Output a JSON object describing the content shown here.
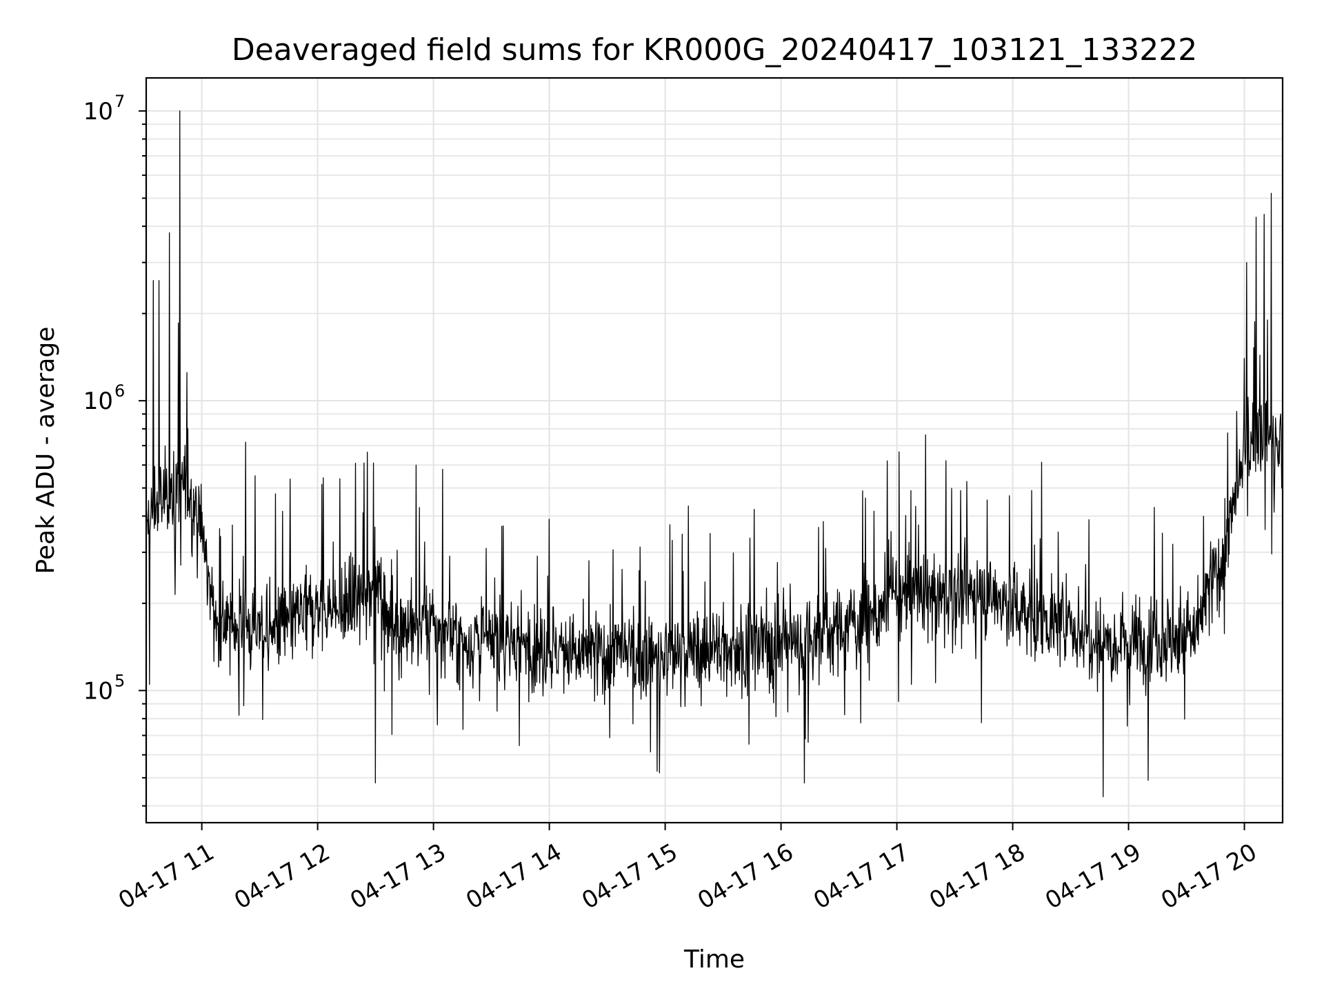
{
  "chart_data": {
    "type": "line",
    "title": "Deaveraged field sums for KR000G_20240417_103121_133222",
    "xlabel": "Time",
    "ylabel": "Peak ADU - average",
    "yscale": "log",
    "ylim": [
      35000,
      13000000
    ],
    "xlim": [
      "2024-04-17 10:31",
      "2024-04-17 20:20"
    ],
    "grid": true,
    "x_ticks": [
      {
        "label": "04-17 11",
        "hour": 11
      },
      {
        "label": "04-17 12",
        "hour": 12
      },
      {
        "label": "04-17 13",
        "hour": 13
      },
      {
        "label": "04-17 14",
        "hour": 14
      },
      {
        "label": "04-17 15",
        "hour": 15
      },
      {
        "label": "04-17 16",
        "hour": 16
      },
      {
        "label": "04-17 17",
        "hour": 17
      },
      {
        "label": "04-17 18",
        "hour": 18
      },
      {
        "label": "04-17 19",
        "hour": 19
      },
      {
        "label": "04-17 20",
        "hour": 20
      }
    ],
    "y_ticks": [
      {
        "base": "10",
        "exp": "5",
        "value": 100000
      },
      {
        "base": "10",
        "exp": "6",
        "value": 1000000
      },
      {
        "base": "10",
        "exp": "7",
        "value": 10000000
      }
    ],
    "series": [
      {
        "color": "#000000",
        "x_hours": [
          10.52,
          10.6,
          10.7,
          10.8,
          10.9,
          11.0,
          11.1,
          11.2,
          11.4,
          11.6,
          11.8,
          12.0,
          12.2,
          12.4,
          12.5,
          12.6,
          12.8,
          13.0,
          13.2,
          13.4,
          13.6,
          13.8,
          14.0,
          14.2,
          14.4,
          14.6,
          14.8,
          15.0,
          15.2,
          15.4,
          15.6,
          15.8,
          16.0,
          16.2,
          16.4,
          16.6,
          16.8,
          17.0,
          17.2,
          17.4,
          17.6,
          17.8,
          18.0,
          18.2,
          18.4,
          18.6,
          18.8,
          19.0,
          19.2,
          19.4,
          19.6,
          19.7,
          19.8,
          19.9,
          20.0,
          20.1,
          20.2,
          20.3,
          20.35
        ],
        "values": [
          350000,
          430000,
          470000,
          500000,
          480000,
          360000,
          180000,
          170000,
          165000,
          160000,
          175000,
          195000,
          185000,
          210000,
          260000,
          180000,
          165000,
          165000,
          150000,
          145000,
          148000,
          145000,
          140000,
          130000,
          135000,
          135000,
          130000,
          130000,
          135000,
          140000,
          140000,
          145000,
          145000,
          150000,
          160000,
          170000,
          180000,
          210000,
          220000,
          210000,
          215000,
          215000,
          195000,
          180000,
          170000,
          160000,
          150000,
          150000,
          155000,
          150000,
          160000,
          230000,
          280000,
          400000,
          650000,
          800000,
          750000,
          700000,
          650000
        ],
        "spikes": [
          {
            "hour": 10.58,
            "value": 2600000
          },
          {
            "hour": 10.63,
            "value": 2600000
          },
          {
            "hour": 10.72,
            "value": 3800000
          },
          {
            "hour": 10.81,
            "value": 10000000
          },
          {
            "hour": 11.38,
            "value": 720000
          },
          {
            "hour": 12.4,
            "value": 610000
          },
          {
            "hour": 12.48,
            "value": 610000
          },
          {
            "hour": 12.85,
            "value": 600000
          },
          {
            "hour": 13.08,
            "value": 580000
          },
          {
            "hour": 14.0,
            "value": 390000
          },
          {
            "hour": 17.12,
            "value": 490000
          },
          {
            "hour": 17.55,
            "value": 490000
          },
          {
            "hour": 17.97,
            "value": 470000
          },
          {
            "hour": 20.0,
            "value": 1400000
          },
          {
            "hour": 20.02,
            "value": 3000000
          },
          {
            "hour": 20.1,
            "value": 4300000
          },
          {
            "hour": 20.17,
            "value": 4400000
          },
          {
            "hour": 20.2,
            "value": 1900000
          },
          {
            "hour": 20.23,
            "value": 5200000
          }
        ],
        "dips": [
          {
            "hour": 10.55,
            "value": 105000
          },
          {
            "hour": 12.5,
            "value": 48000
          },
          {
            "hour": 14.95,
            "value": 52000
          },
          {
            "hour": 16.2,
            "value": 48000
          },
          {
            "hour": 18.78,
            "value": 43000
          },
          {
            "hour": 19.17,
            "value": 49000
          }
        ]
      }
    ]
  }
}
